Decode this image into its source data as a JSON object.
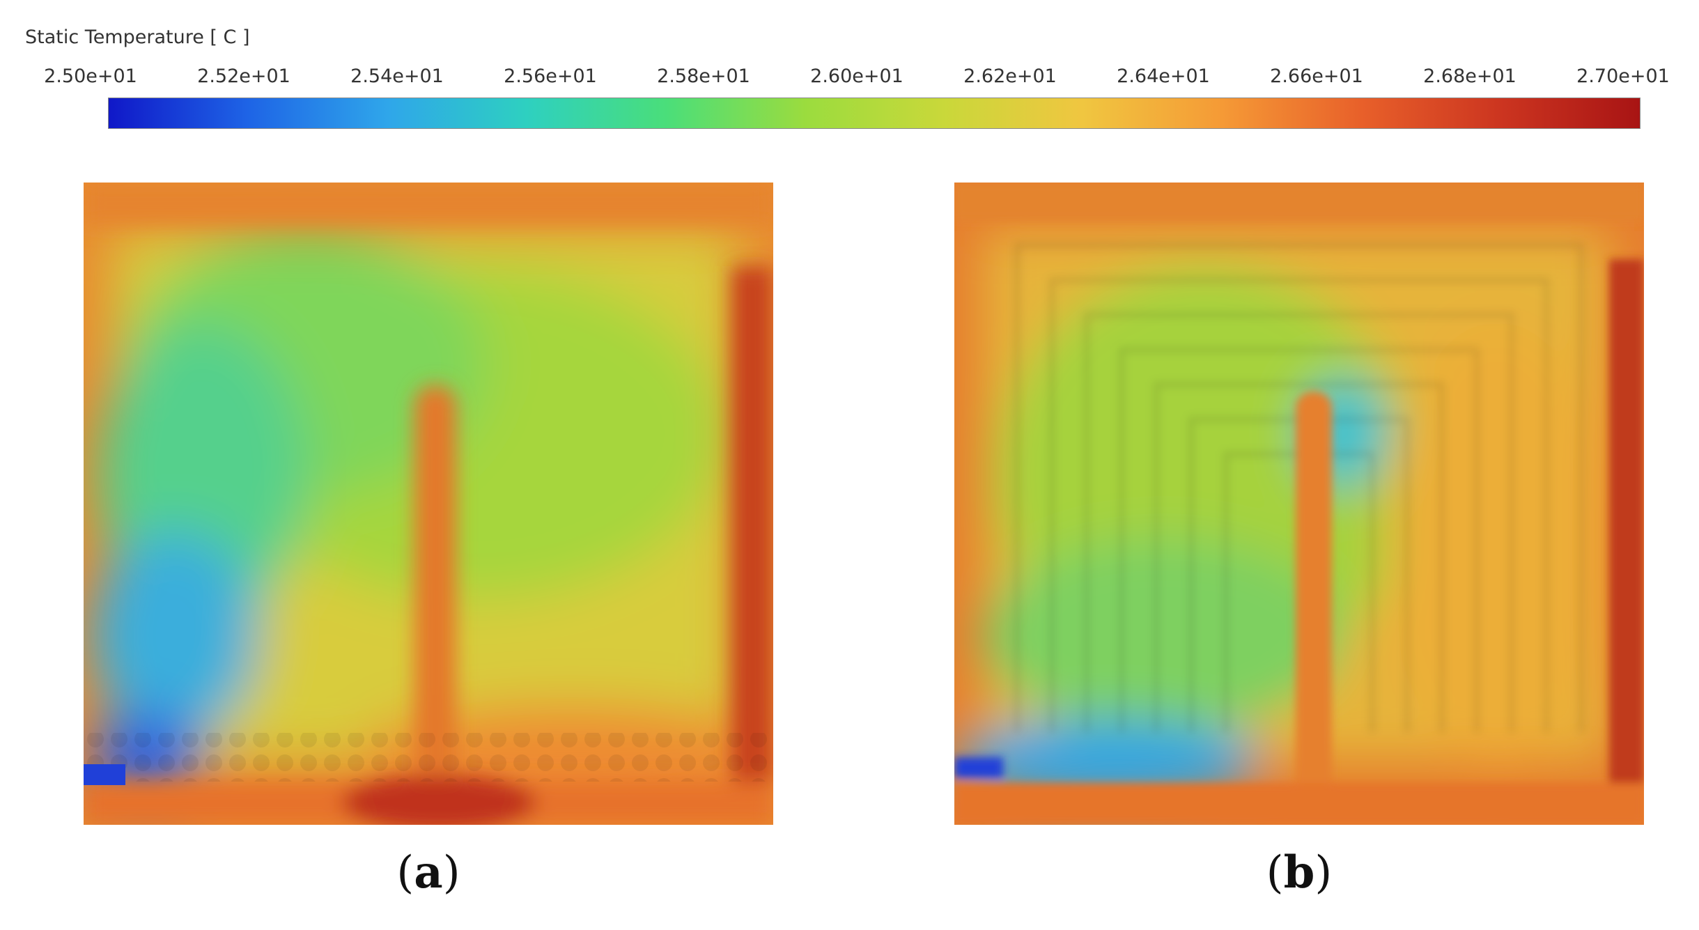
{
  "legend": {
    "title": "Static Temperature [ C ]",
    "ticks": [
      "2.50e+01",
      "2.52e+01",
      "2.54e+01",
      "2.56e+01",
      "2.58e+01",
      "2.60e+01",
      "2.62e+01",
      "2.64e+01",
      "2.66e+01",
      "2.68e+01",
      "2.70e+01"
    ],
    "colors": [
      "#1018c8",
      "#1e64e6",
      "#2fa6ea",
      "#2ed0c0",
      "#4ade7a",
      "#9bdc3e",
      "#c9d83a",
      "#f0c640",
      "#f59a36",
      "#e8602a",
      "#cc3520",
      "#a81414"
    ]
  },
  "panels": [
    {
      "label_open": "(",
      "label_letter": "a",
      "label_close": ")"
    },
    {
      "label_open": "(",
      "label_letter": "b",
      "label_close": ")"
    }
  ]
}
